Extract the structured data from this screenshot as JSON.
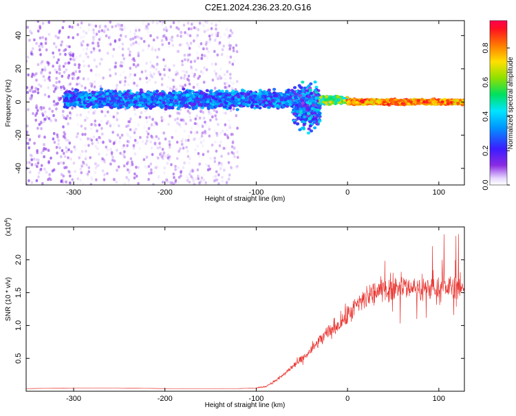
{
  "title": "C2E1.2024.236.23.20.G16",
  "chart_data": [
    {
      "type": "heatmap",
      "xlabel": "Height of straight line (km)",
      "ylabel": "Frequency (Hz)",
      "xlim": [
        -352,
        128
      ],
      "ylim": [
        -50,
        49
      ],
      "xticks": [
        -300,
        -200,
        -100,
        0,
        100
      ],
      "yticks": [
        -40,
        -20,
        0,
        20,
        40
      ],
      "colorbar": {
        "label": "Normalized spectral amplitude",
        "range": [
          0.0,
          0.96
        ],
        "ticks": [
          0.0,
          0.2,
          0.4,
          0.6,
          0.8
        ],
        "colormap": "rainbow (violet → blue → cyan → green → yellow → orange → red)"
      },
      "description_points": [
        {
          "x_range": [
            -352,
            -300
          ],
          "f_range": [
            -50,
            49
          ],
          "amp": [
            0.05,
            0.15
          ]
        },
        {
          "x_range": [
            -300,
            -120
          ],
          "f_range": [
            -50,
            49
          ],
          "amp": [
            0.02,
            0.12
          ]
        },
        {
          "x_range": [
            -310,
            -40
          ],
          "f_range": [
            -5,
            8
          ],
          "amp": [
            0.15,
            0.45
          ]
        },
        {
          "x_range": [
            -60,
            -30
          ],
          "f_range": [
            -20,
            15
          ],
          "amp": [
            0.1,
            0.5
          ]
        },
        {
          "x_range": [
            -30,
            0
          ],
          "f_range": [
            -2,
            4
          ],
          "amp": [
            0.4,
            0.8
          ]
        },
        {
          "x_range": [
            0,
            128
          ],
          "f_range": [
            -2,
            2
          ],
          "amp": [
            0.7,
            0.96
          ]
        }
      ]
    },
    {
      "type": "line",
      "xlabel": "Height of straight line (km)",
      "ylabel": "SNR (10 * v/v)",
      "y_multiplier": "(x10",
      "y_multiplier_exp": "4",
      "y_multiplier_close": ")",
      "xlim": [
        -352,
        128
      ],
      "ylim": [
        0,
        2.5
      ],
      "xticks": [
        -300,
        -200,
        -100,
        0,
        100
      ],
      "yticks": [
        0.5,
        1.0,
        1.5,
        2.0
      ],
      "ytick_labels": [
        "0.5",
        "1.0",
        "1.5",
        "2.0"
      ],
      "color": "#e8332e",
      "series": [
        {
          "x": [
            -352,
            -300,
            -250,
            -200,
            -150,
            -120,
            -100,
            -90,
            -80,
            -70,
            -60,
            -50,
            -40,
            -30,
            -20,
            -10,
            0,
            10,
            20,
            30,
            40,
            50,
            60,
            70,
            80,
            90,
            100,
            110,
            120,
            128
          ],
          "y": [
            0.04,
            0.05,
            0.05,
            0.04,
            0.04,
            0.04,
            0.05,
            0.07,
            0.15,
            0.25,
            0.38,
            0.48,
            0.62,
            0.78,
            0.9,
            1.02,
            1.15,
            1.3,
            1.42,
            1.5,
            1.55,
            1.58,
            1.6,
            1.58,
            1.56,
            1.57,
            1.55,
            1.58,
            1.6,
            1.55
          ]
        }
      ]
    }
  ]
}
